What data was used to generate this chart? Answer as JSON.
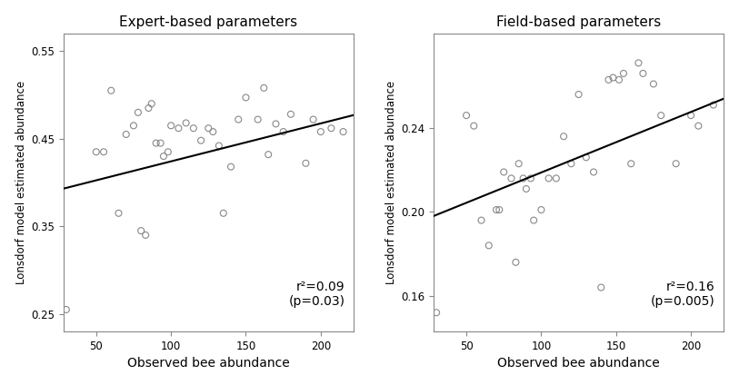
{
  "plot1": {
    "title": "Expert-based parameters",
    "xlabel": "Observed bee abundance",
    "ylabel": "Lonsdorf model estimated abundance",
    "xlim": [
      28,
      222
    ],
    "ylim": [
      0.23,
      0.57
    ],
    "xticks": [
      50,
      100,
      150,
      200
    ],
    "yticks": [
      0.25,
      0.35,
      0.45,
      0.55
    ],
    "annotation": "r²=0.09\n(p=0.03)",
    "scatter_x": [
      30,
      50,
      55,
      60,
      65,
      70,
      75,
      78,
      80,
      83,
      85,
      87,
      90,
      93,
      95,
      98,
      100,
      105,
      110,
      115,
      120,
      125,
      128,
      132,
      135,
      140,
      145,
      150,
      158,
      162,
      165,
      170,
      175,
      180,
      190,
      195,
      200,
      207,
      215
    ],
    "scatter_y": [
      0.255,
      0.435,
      0.435,
      0.505,
      0.365,
      0.455,
      0.465,
      0.48,
      0.345,
      0.34,
      0.485,
      0.49,
      0.445,
      0.445,
      0.43,
      0.435,
      0.465,
      0.462,
      0.468,
      0.462,
      0.448,
      0.462,
      0.458,
      0.442,
      0.365,
      0.418,
      0.472,
      0.497,
      0.472,
      0.508,
      0.432,
      0.467,
      0.458,
      0.478,
      0.422,
      0.472,
      0.458,
      0.462,
      0.458
    ],
    "line_x": [
      28,
      222
    ],
    "line_y": [
      0.393,
      0.477
    ],
    "marker_size": 5,
    "marker_facecolor": "none",
    "marker_edgecolor": "#888888",
    "line_color": "#000000",
    "line_width": 1.5
  },
  "plot2": {
    "title": "Field-based parameters",
    "xlabel": "Observed bee abundance",
    "ylabel": "Lonsdorf model estimated abundance",
    "xlim": [
      28,
      222
    ],
    "ylim": [
      0.143,
      0.285
    ],
    "xticks": [
      50,
      100,
      150,
      200
    ],
    "yticks": [
      0.16,
      0.2,
      0.24
    ],
    "annotation": "r²=0.16\n(p=0.005)",
    "scatter_x": [
      30,
      50,
      55,
      60,
      65,
      70,
      72,
      75,
      80,
      83,
      85,
      88,
      90,
      93,
      95,
      100,
      105,
      110,
      115,
      120,
      125,
      130,
      135,
      140,
      145,
      148,
      152,
      155,
      160,
      165,
      168,
      175,
      180,
      190,
      200,
      205,
      215
    ],
    "scatter_y": [
      0.152,
      0.246,
      0.241,
      0.196,
      0.184,
      0.201,
      0.201,
      0.219,
      0.216,
      0.176,
      0.223,
      0.216,
      0.211,
      0.216,
      0.196,
      0.201,
      0.216,
      0.216,
      0.236,
      0.223,
      0.256,
      0.226,
      0.219,
      0.164,
      0.263,
      0.264,
      0.263,
      0.266,
      0.223,
      0.271,
      0.266,
      0.261,
      0.246,
      0.223,
      0.246,
      0.241,
      0.251
    ],
    "line_x": [
      28,
      222
    ],
    "line_y": [
      0.198,
      0.254
    ],
    "marker_size": 5,
    "marker_facecolor": "none",
    "marker_edgecolor": "#888888",
    "line_color": "#000000",
    "line_width": 1.5
  },
  "fig_background": "#ffffff",
  "ax_background": "#ffffff",
  "spine_color": "#888888",
  "spine_linewidth": 0.8
}
